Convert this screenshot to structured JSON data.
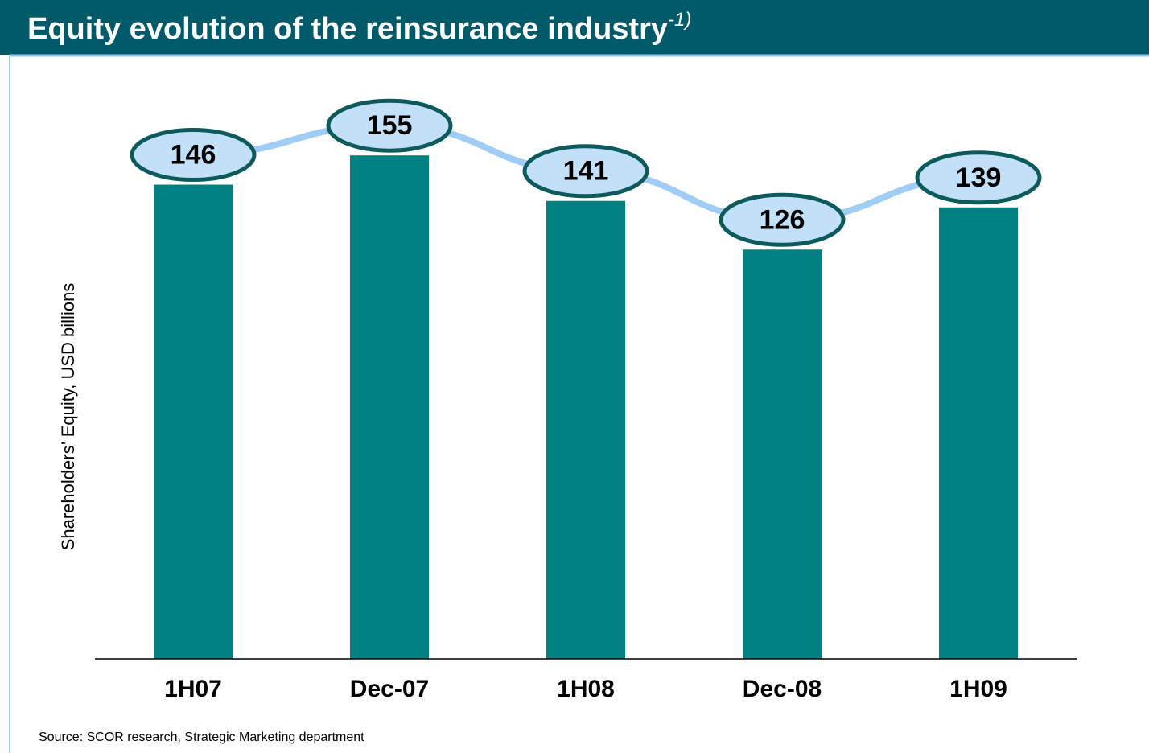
{
  "chart_data": {
    "type": "bar",
    "title": "Equity evolution of the reinsurance industry",
    "title_note": "-1)",
    "y_axis_label": "Shareholders’ Equity, USD billions",
    "source": "Source: SCOR research, Strategic Marketing department",
    "categories": [
      "1H07",
      "Dec-07",
      "1H08",
      "Dec-08",
      "1H09"
    ],
    "values": [
      146,
      155,
      141,
      126,
      139
    ],
    "color": "#008080",
    "line_color": "#a0cdf5",
    "ylim": [
      0,
      160
    ]
  }
}
